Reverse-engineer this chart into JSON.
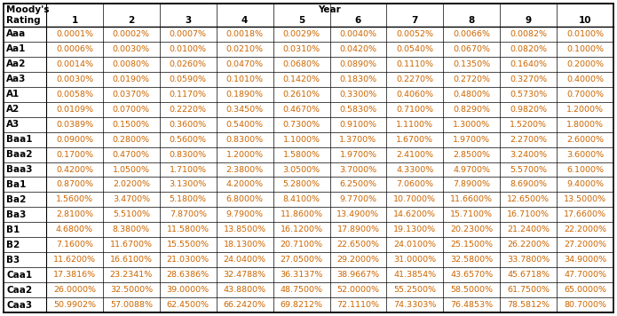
{
  "year_label": "Year",
  "col_headers": [
    "1",
    "2",
    "3",
    "4",
    "5",
    "6",
    "7",
    "8",
    "9",
    "10"
  ],
  "ratings": [
    "Aaa",
    "Aa1",
    "Aa2",
    "Aa3",
    "A1",
    "A2",
    "A3",
    "Baa1",
    "Baa2",
    "Baa3",
    "Ba1",
    "Ba2",
    "Ba3",
    "B1",
    "B2",
    "B3",
    "Caa1",
    "Caa2",
    "Caa3"
  ],
  "data": [
    [
      "0.0001%",
      "0.0002%",
      "0.0007%",
      "0.0018%",
      "0.0029%",
      "0.0040%",
      "0.0052%",
      "0.0066%",
      "0.0082%",
      "0.0100%"
    ],
    [
      "0.0006%",
      "0.0030%",
      "0.0100%",
      "0.0210%",
      "0.0310%",
      "0.0420%",
      "0.0540%",
      "0.0670%",
      "0.0820%",
      "0.1000%"
    ],
    [
      "0.0014%",
      "0.0080%",
      "0.0260%",
      "0.0470%",
      "0.0680%",
      "0.0890%",
      "0.1110%",
      "0.1350%",
      "0.1640%",
      "0.2000%"
    ],
    [
      "0.0030%",
      "0.0190%",
      "0.0590%",
      "0.1010%",
      "0.1420%",
      "0.1830%",
      "0.2270%",
      "0.2720%",
      "0.3270%",
      "0.4000%"
    ],
    [
      "0.0058%",
      "0.0370%",
      "0.1170%",
      "0.1890%",
      "0.2610%",
      "0.3300%",
      "0.4060%",
      "0.4800%",
      "0.5730%",
      "0.7000%"
    ],
    [
      "0.0109%",
      "0.0700%",
      "0.2220%",
      "0.3450%",
      "0.4670%",
      "0.5830%",
      "0.7100%",
      "0.8290%",
      "0.9820%",
      "1.2000%"
    ],
    [
      "0.0389%",
      "0.1500%",
      "0.3600%",
      "0.5400%",
      "0.7300%",
      "0.9100%",
      "1.1100%",
      "1.3000%",
      "1.5200%",
      "1.8000%"
    ],
    [
      "0.0900%",
      "0.2800%",
      "0.5600%",
      "0.8300%",
      "1.1000%",
      "1.3700%",
      "1.6700%",
      "1.9700%",
      "2.2700%",
      "2.6000%"
    ],
    [
      "0.1700%",
      "0.4700%",
      "0.8300%",
      "1.2000%",
      "1.5800%",
      "1.9700%",
      "2.4100%",
      "2.8500%",
      "3.2400%",
      "3.6000%"
    ],
    [
      "0.4200%",
      "1.0500%",
      "1.7100%",
      "2.3800%",
      "3.0500%",
      "3.7000%",
      "4.3300%",
      "4.9700%",
      "5.5700%",
      "6.1000%"
    ],
    [
      "0.8700%",
      "2.0200%",
      "3.1300%",
      "4.2000%",
      "5.2800%",
      "6.2500%",
      "7.0600%",
      "7.8900%",
      "8.6900%",
      "9.4000%"
    ],
    [
      "1.5600%",
      "3.4700%",
      "5.1800%",
      "6.8000%",
      "8.4100%",
      "9.7700%",
      "10.7000%",
      "11.6600%",
      "12.6500%",
      "13.5000%"
    ],
    [
      "2.8100%",
      "5.5100%",
      "7.8700%",
      "9.7900%",
      "11.8600%",
      "13.4900%",
      "14.6200%",
      "15.7100%",
      "16.7100%",
      "17.6600%"
    ],
    [
      "4.6800%",
      "8.3800%",
      "11.5800%",
      "13.8500%",
      "16.1200%",
      "17.8900%",
      "19.1300%",
      "20.2300%",
      "21.2400%",
      "22.2000%"
    ],
    [
      "7.1600%",
      "11.6700%",
      "15.5500%",
      "18.1300%",
      "20.7100%",
      "22.6500%",
      "24.0100%",
      "25.1500%",
      "26.2200%",
      "27.2000%"
    ],
    [
      "11.6200%",
      "16.6100%",
      "21.0300%",
      "24.0400%",
      "27.0500%",
      "29.2000%",
      "31.0000%",
      "32.5800%",
      "33.7800%",
      "34.9000%"
    ],
    [
      "17.3816%",
      "23.2341%",
      "28.6386%",
      "32.4788%",
      "36.3137%",
      "38.9667%",
      "41.3854%",
      "43.6570%",
      "45.6718%",
      "47.7000%"
    ],
    [
      "26.0000%",
      "32.5000%",
      "39.0000%",
      "43.8800%",
      "48.7500%",
      "52.0000%",
      "55.2500%",
      "58.5000%",
      "61.7500%",
      "65.0000%"
    ],
    [
      "50.9902%",
      "57.0088%",
      "62.4500%",
      "66.2420%",
      "69.8212%",
      "72.1110%",
      "74.3303%",
      "76.4853%",
      "78.5812%",
      "80.7000%"
    ]
  ],
  "text_color_data": "#cc6600",
  "text_color_header": "#000000",
  "text_color_rating": "#000000",
  "border_color": "#000000",
  "fig_bg": "#ffffff",
  "font_size_header": 7.5,
  "font_size_data": 6.8,
  "font_size_rating": 7.5
}
